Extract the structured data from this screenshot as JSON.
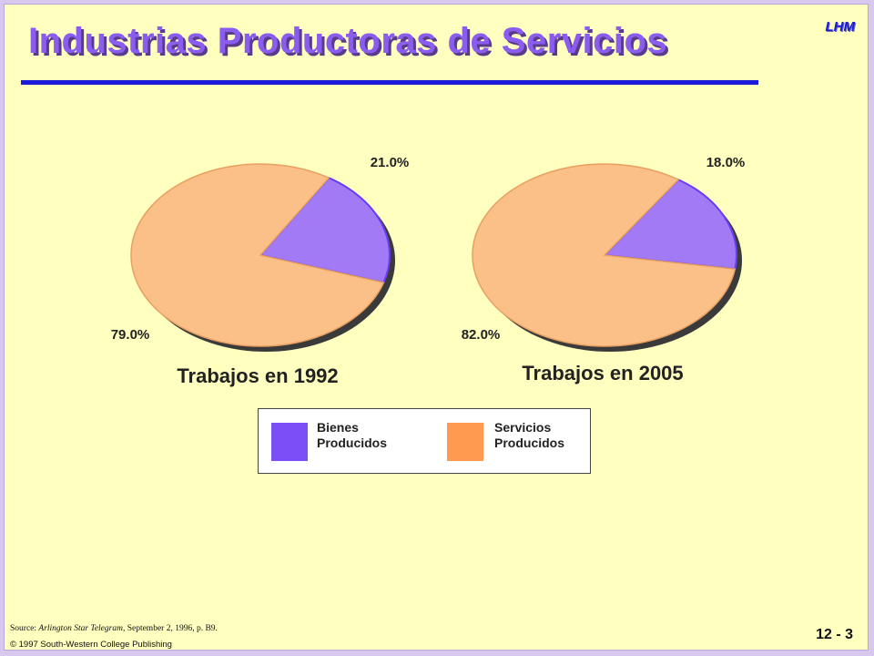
{
  "slide": {
    "title": "Industrias Productoras de Servicios",
    "corner_tag": "LHM",
    "page_number": "12 - 3",
    "source_label": "Source: ",
    "source_publication": "Arlington Star Telegram",
    "source_rest": ", September 2, 1996, p. B9.",
    "copyright": "© 1997 South-Western College Publishing"
  },
  "legend": {
    "items": [
      {
        "label": "Bienes\nProducidos",
        "color": "#7b4ff5"
      },
      {
        "label": "Servicios\nProducidos",
        "color": "#ff9a50"
      }
    ]
  },
  "colors": {
    "bienes": "#a37af5",
    "servicios": "#fbbf88",
    "background": "#ffffc0",
    "title": "#8a5cf0",
    "rule": "#1a1ad8"
  },
  "chart_data": [
    {
      "type": "pie",
      "title": "Trabajos en 1992",
      "categories": [
        "Bienes Producidos",
        "Servicios Producidos"
      ],
      "values": [
        21.0,
        79.0
      ],
      "labels": [
        "21.0%",
        "79.0%"
      ]
    },
    {
      "type": "pie",
      "title": "Trabajos en  2005",
      "categories": [
        "Bienes Producidos",
        "Servicios Producidos"
      ],
      "values": [
        18.0,
        82.0
      ],
      "labels": [
        "18.0%",
        "82.0%"
      ]
    }
  ]
}
